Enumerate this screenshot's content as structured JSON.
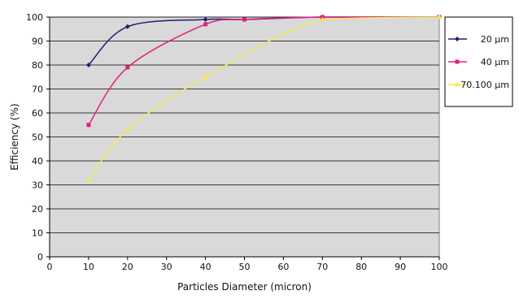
{
  "chart_data": {
    "type": "line",
    "xlabel": "Particles Diameter (micron)",
    "ylabel": "Efficiency (%)",
    "xlim": [
      0,
      100
    ],
    "ylim": [
      0,
      100
    ],
    "x_ticks": [
      "0",
      "10",
      "20",
      "30",
      "40",
      "50",
      "60",
      "70",
      "80",
      "90",
      "100"
    ],
    "y_ticks": [
      "0",
      "10",
      "20",
      "30",
      "40",
      "50",
      "60",
      "70",
      "80",
      "90",
      "100"
    ],
    "grid": "horizontal",
    "legend_position": "right",
    "plot_background": "#d9d9d9",
    "series": [
      {
        "name": "20 µm",
        "color": "#1f1f6e",
        "marker": "diamond",
        "x": [
          10,
          20,
          40,
          50,
          70,
          100
        ],
        "y": [
          80,
          96,
          99,
          99,
          100,
          100
        ]
      },
      {
        "name": "40 µm",
        "color": "#e0207a",
        "marker": "square",
        "x": [
          10,
          20,
          40,
          50,
          70,
          100
        ],
        "y": [
          55,
          79,
          97,
          99,
          100,
          100
        ]
      },
      {
        "name": "70.100 µm",
        "color": "#f0ec5a",
        "marker": "triangle",
        "x": [
          10,
          20,
          40,
          70,
          100
        ],
        "y": [
          32,
          53,
          75,
          99,
          100
        ]
      }
    ]
  }
}
